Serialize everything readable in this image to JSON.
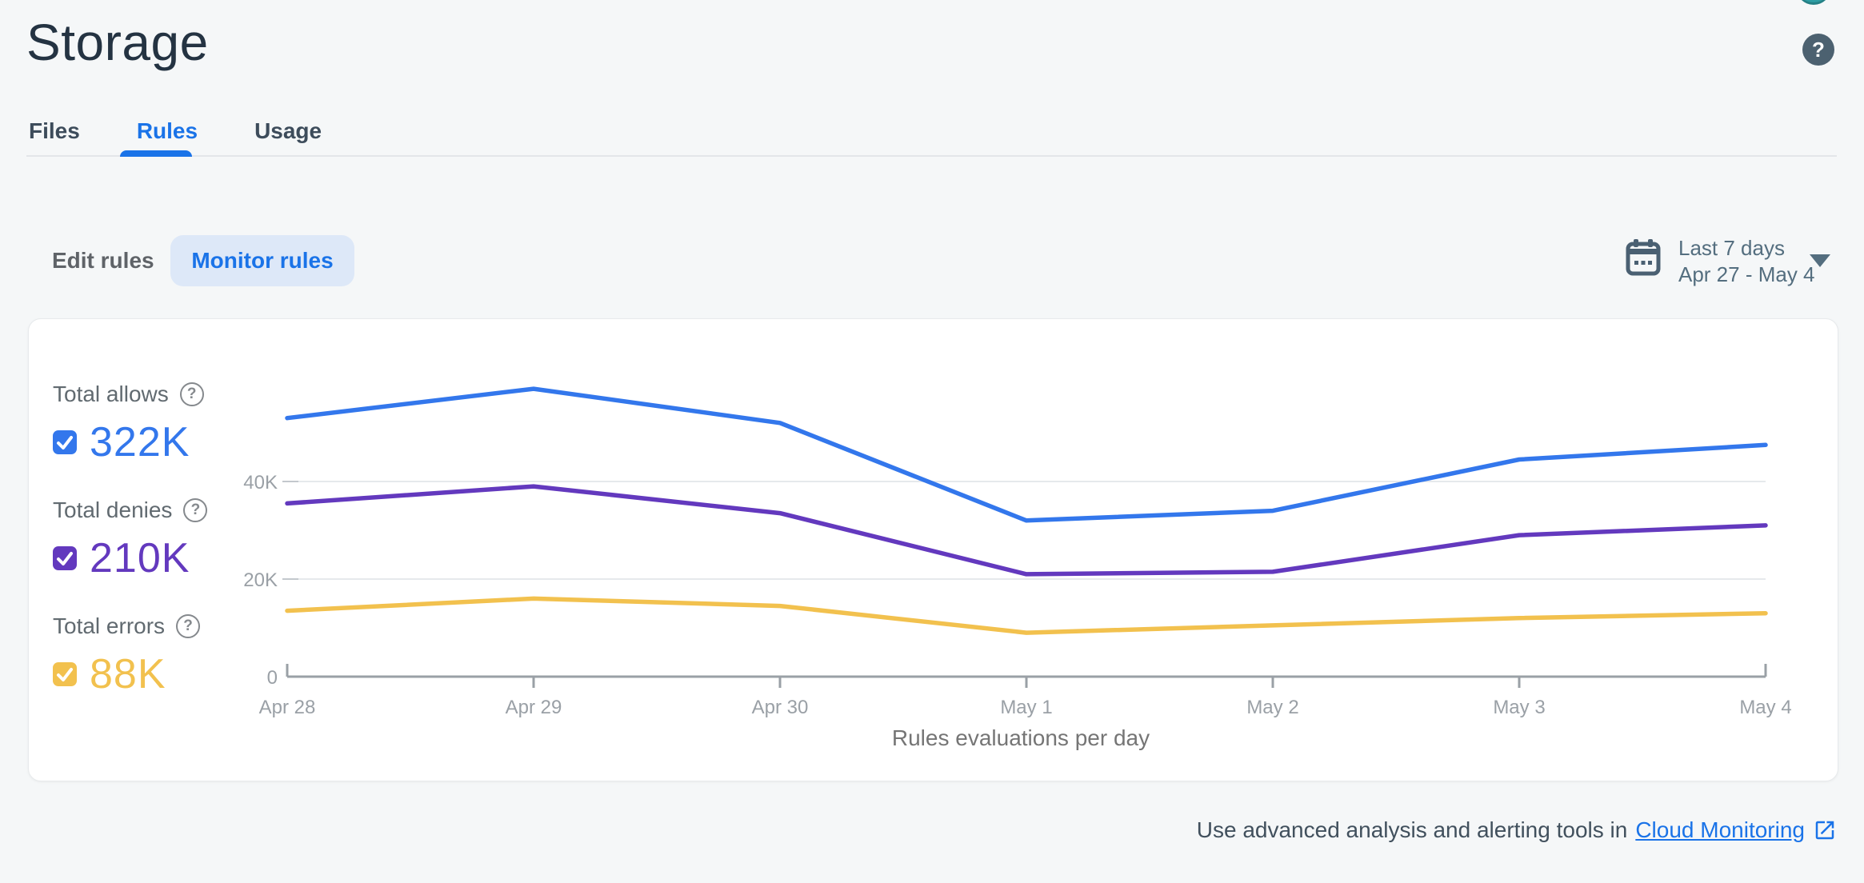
{
  "header": {
    "title": "Storage",
    "help_icon": "question-mark",
    "avatar_color": "#2d9da3"
  },
  "tabs": [
    {
      "label": "Files",
      "active": false
    },
    {
      "label": "Rules",
      "active": true
    },
    {
      "label": "Usage",
      "active": false
    }
  ],
  "toolbar": {
    "edit_rules_label": "Edit rules",
    "monitor_rules_label": "Monitor rules",
    "date_range": {
      "icon": "calendar",
      "primary": "Last 7 days",
      "secondary": "Apr 27 - May 4"
    }
  },
  "legend": [
    {
      "label": "Total allows",
      "value": "322K",
      "color": "#3377ec",
      "checked": true
    },
    {
      "label": "Total denies",
      "value": "210K",
      "color": "#6339be",
      "checked": true
    },
    {
      "label": "Total errors",
      "value": "88K",
      "color": "#f2c14e",
      "checked": true
    }
  ],
  "chart_data": {
    "type": "line",
    "title": "Rules evaluations per day",
    "x": [
      "Apr 28",
      "Apr 29",
      "Apr 30",
      "May 1",
      "May 2",
      "May 3",
      "May 4"
    ],
    "series": [
      {
        "name": "Total allows",
        "color": "#3377ec",
        "values": [
          53000,
          59000,
          52000,
          32000,
          34000,
          44500,
          47500
        ]
      },
      {
        "name": "Total denies",
        "color": "#6339be",
        "values": [
          35500,
          39000,
          33500,
          21000,
          21500,
          29000,
          31000
        ]
      },
      {
        "name": "Total errors",
        "color": "#f2c14e",
        "values": [
          13500,
          16000,
          14500,
          9000,
          10500,
          12000,
          13000
        ]
      }
    ],
    "ylim": [
      0,
      60000
    ],
    "yticks": [
      {
        "value": 0,
        "label": "0"
      },
      {
        "value": 20000,
        "label": "20K"
      },
      {
        "value": 40000,
        "label": "40K"
      }
    ],
    "grid": "horizontal",
    "legend_position": "left",
    "xlabel": "",
    "ylabel": ""
  },
  "footer": {
    "text": "Use advanced analysis and alerting tools in",
    "link_label": "Cloud Monitoring"
  }
}
